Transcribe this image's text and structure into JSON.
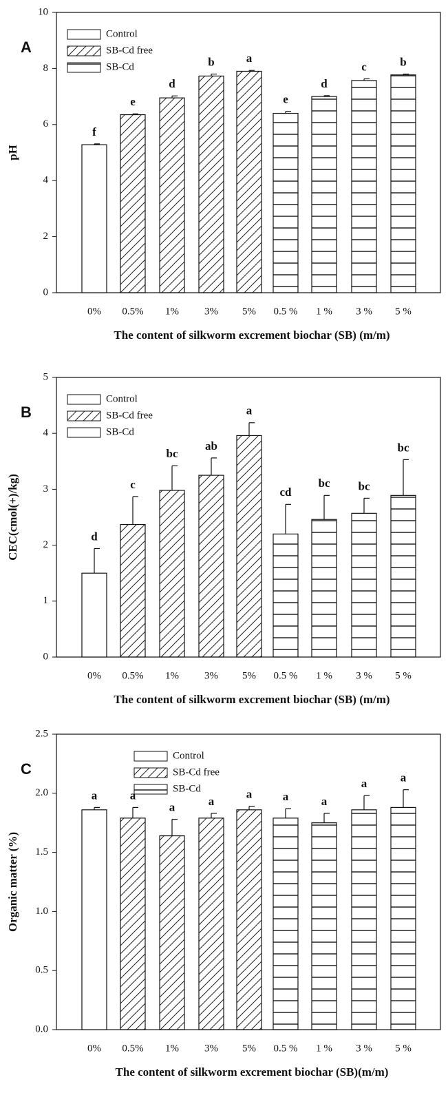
{
  "charts": [
    {
      "type": "bar",
      "panel": "A",
      "ylabel": "pH",
      "xlabel": "The content of silkworm  excrement biochar (SB) (m/m)",
      "categories": [
        "0%",
        "0.5%",
        "1%",
        "3%",
        "5%",
        "0.5 %",
        "1 %",
        "3 %",
        "5 %"
      ],
      "ylim": [
        0,
        10
      ],
      "yticks": [
        0,
        2,
        4,
        6,
        8,
        10
      ],
      "series": [
        {
          "name": "Control",
          "pattern": "none",
          "values": [
            5.28,
            null,
            null,
            null,
            null,
            null,
            null,
            null,
            null
          ],
          "errors": [
            0.03,
            null,
            null,
            null,
            null,
            null,
            null,
            null,
            null
          ],
          "letters": [
            "f",
            null,
            null,
            null,
            null,
            null,
            null,
            null,
            null
          ]
        },
        {
          "name": "SB-Cd free",
          "pattern": "diagonal",
          "values": [
            null,
            6.35,
            6.95,
            7.73,
            7.9,
            null,
            null,
            null,
            null
          ],
          "errors": [
            null,
            0.03,
            0.07,
            0.07,
            0.03,
            null,
            null,
            null,
            null
          ],
          "letters": [
            null,
            "e",
            "d",
            "b",
            "a",
            null,
            null,
            null,
            null
          ]
        },
        {
          "name": "SB-Cd",
          "pattern": "horizontal",
          "values": [
            null,
            null,
            null,
            null,
            null,
            6.4,
            7.0,
            7.57,
            7.77
          ],
          "errors": [
            null,
            null,
            null,
            null,
            null,
            0.07,
            0.03,
            0.06,
            0.03
          ],
          "letters": [
            null,
            null,
            null,
            null,
            null,
            "e",
            "d",
            "c",
            "b"
          ]
        }
      ]
    },
    {
      "type": "bar",
      "panel": "B",
      "ylabel": "CEC(cmol(+)/kg)",
      "xlabel": "The content of silkworm  excrement biochar (SB) (m/m)",
      "categories": [
        "0%",
        "0.5%",
        "1%",
        "3%",
        "5%",
        "0.5 %",
        "1 %",
        "3 %",
        "5 %"
      ],
      "ylim": [
        0,
        5
      ],
      "yticks": [
        0,
        1,
        2,
        3,
        4,
        5
      ],
      "series": [
        {
          "name": "Control",
          "pattern": "none",
          "values": [
            1.5,
            null,
            null,
            null,
            null,
            null,
            null,
            null,
            null
          ],
          "errors": [
            0.44,
            null,
            null,
            null,
            null,
            null,
            null,
            null,
            null
          ],
          "letters": [
            "d",
            null,
            null,
            null,
            null,
            null,
            null,
            null,
            null
          ]
        },
        {
          "name": "SB-Cd free",
          "pattern": "diagonal",
          "values": [
            null,
            2.37,
            2.98,
            3.25,
            3.96,
            null,
            null,
            null,
            null
          ],
          "errors": [
            null,
            0.5,
            0.44,
            0.31,
            0.23,
            null,
            null,
            null,
            null
          ],
          "letters": [
            null,
            "c",
            "bc",
            "ab",
            "a",
            null,
            null,
            null,
            null
          ]
        },
        {
          "name": "SB-Cd",
          "pattern": "horizontal",
          "values": [
            null,
            null,
            null,
            null,
            null,
            2.2,
            2.46,
            2.57,
            2.89
          ],
          "errors": [
            null,
            null,
            null,
            null,
            null,
            0.53,
            0.43,
            0.27,
            0.64
          ],
          "letters": [
            null,
            null,
            null,
            null,
            null,
            "cd",
            "bc",
            "bc",
            "bc"
          ]
        }
      ]
    },
    {
      "type": "bar",
      "panel": "C",
      "ylabel": "Organic matter (%)",
      "xlabel": "The content of silkworm excrement biochar (SB)(m/m)",
      "categories": [
        "0%",
        "0.5%",
        "1%",
        "3%",
        "5%",
        "0.5 %",
        "1 %",
        "3 %",
        "5 %"
      ],
      "ylim": [
        0,
        2.5
      ],
      "yticks": [
        {
          "value": 0,
          "label": "0.0"
        },
        {
          "value": 0.5,
          "label": "0.5"
        },
        {
          "value": 1,
          "label": "1.0"
        },
        {
          "value": 1.5,
          "label": "1.5"
        },
        {
          "value": 2,
          "label": "2.0"
        },
        {
          "value": 2.5,
          "label": "2.5"
        }
      ],
      "series": [
        {
          "name": "Control",
          "pattern": "none",
          "values": [
            1.86,
            null,
            null,
            null,
            null,
            null,
            null,
            null,
            null
          ],
          "errors": [
            0.02,
            null,
            null,
            null,
            null,
            null,
            null,
            null,
            null
          ],
          "letters": [
            "a",
            null,
            null,
            null,
            null,
            null,
            null,
            null,
            null
          ]
        },
        {
          "name": "SB-Cd free",
          "pattern": "diagonal",
          "values": [
            null,
            1.79,
            1.64,
            1.79,
            1.86,
            null,
            null,
            null,
            null
          ],
          "errors": [
            null,
            0.09,
            0.14,
            0.04,
            0.03,
            null,
            null,
            null,
            null
          ],
          "letters": [
            null,
            "a",
            "a",
            "a",
            "a",
            null,
            null,
            null,
            null
          ]
        },
        {
          "name": "SB-Cd",
          "pattern": "horizontal",
          "values": [
            null,
            null,
            null,
            null,
            null,
            1.79,
            1.75,
            1.86,
            1.88
          ],
          "errors": [
            null,
            null,
            null,
            null,
            null,
            0.08,
            0.08,
            0.12,
            0.15
          ],
          "letters": [
            null,
            null,
            null,
            null,
            null,
            "a",
            "a",
            "a",
            "a"
          ]
        }
      ]
    }
  ]
}
